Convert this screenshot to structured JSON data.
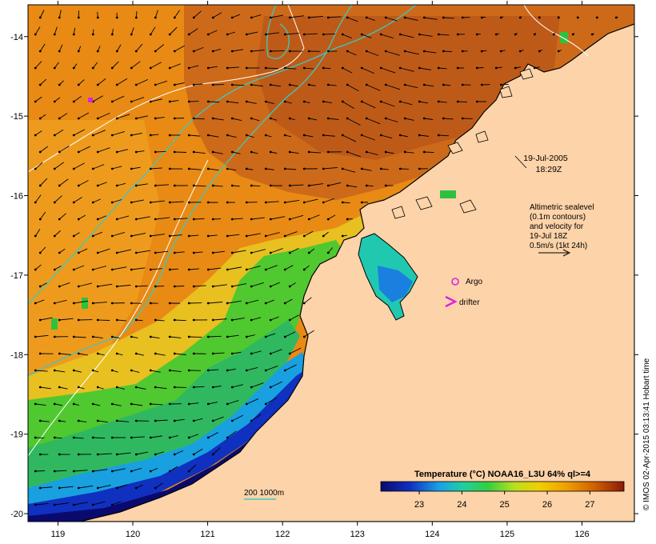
{
  "map": {
    "lon_ticks": [
      "119",
      "120",
      "121",
      "122",
      "123",
      "124",
      "125",
      "126"
    ],
    "lat_ticks": [
      "-14",
      "-15",
      "-16",
      "-17",
      "-18",
      "-19",
      "-20"
    ],
    "lon_range": [
      118.6,
      126.7
    ],
    "lat_range": [
      -13.6,
      -20.1
    ],
    "timestamp_date": "19-Jul-2005",
    "timestamp_time": "18:29Z",
    "altimetry_note": [
      "Altimetric sealevel",
      "(0.1m contours)",
      "and velocity for",
      "19-Jul 18Z",
      "0.5m/s (1kt 24h)"
    ],
    "argo_label": "Argo",
    "drifter_label": "drifter",
    "depth_contour_label": "200  1000m",
    "credit": "© IMOS 02-Apr-2015 03:13:41 Hobart time"
  },
  "colorbar": {
    "title": "Temperature (°C) NOAA16_L3U 64% ql>=4",
    "ticks": [
      "23",
      "24",
      "25",
      "26",
      "27"
    ],
    "range": [
      22.1,
      27.8
    ]
  },
  "colors": {
    "land": "#FDD3A9",
    "coast": "#000000",
    "contour_200": "#3CC9C0",
    "contour_sealevel": "#FFFFFF",
    "argo": "#D926D9",
    "drifter": "#E020E0"
  }
}
